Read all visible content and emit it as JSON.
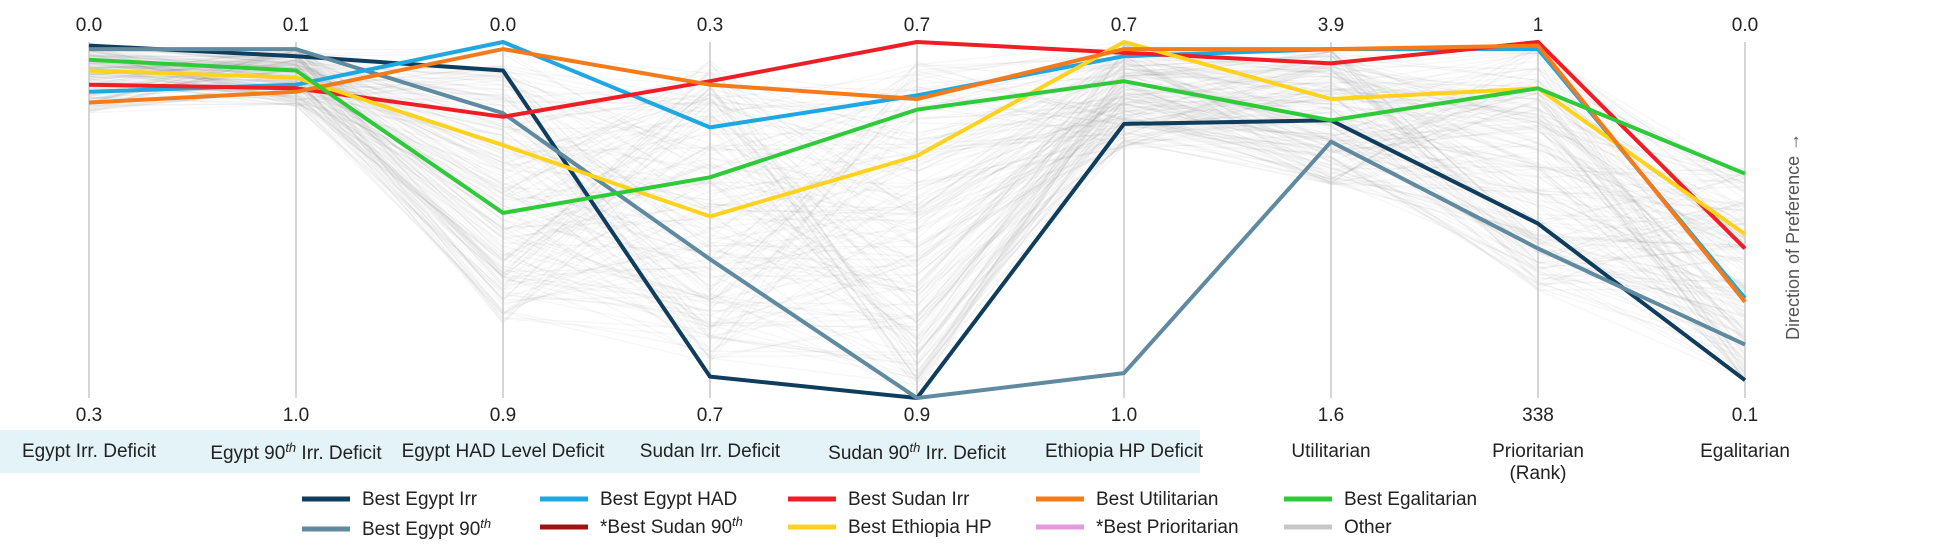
{
  "chart_data": {
    "type": "parallel-coordinates",
    "direction_label": "Direction of Preference →",
    "axes": [
      {
        "id": "egypt_irr",
        "label": "Egypt Irr. Deficit",
        "top": "0.0",
        "bottom": "0.3",
        "group": "deficit"
      },
      {
        "id": "egypt_90",
        "label_pre": "Egypt 90",
        "label_sup": "th",
        "label_post": " Irr. Deficit",
        "top": "0.1",
        "bottom": "1.0",
        "group": "deficit"
      },
      {
        "id": "egypt_had",
        "label": "Egypt HAD Level Deficit",
        "top": "0.0",
        "bottom": "0.9",
        "group": "deficit"
      },
      {
        "id": "sudan_irr",
        "label": "Sudan Irr. Deficit",
        "top": "0.3",
        "bottom": "0.7",
        "group": "deficit"
      },
      {
        "id": "sudan_90",
        "label_pre": "Sudan 90",
        "label_sup": "th",
        "label_post": " Irr. Deficit",
        "top": "0.7",
        "bottom": "0.9",
        "group": "deficit"
      },
      {
        "id": "ethiopia_hp",
        "label": "Ethiopia HP Deficit",
        "top": "0.7",
        "bottom": "1.0",
        "group": "deficit"
      },
      {
        "id": "utilitarian",
        "label": "Utilitarian",
        "top": "3.9",
        "bottom": "1.6",
        "group": "welfare"
      },
      {
        "id": "prioritarian",
        "label": "Prioritarian",
        "label_line2": "(Rank)",
        "top": "1",
        "bottom": "338",
        "group": "welfare"
      },
      {
        "id": "egalitarian",
        "label": "Egalitarian",
        "top": "0.0",
        "bottom": "0.1",
        "group": "welfare"
      }
    ],
    "value_scale": "normalized preference score per axis, 1 = top (preferred end), 0 = bottom",
    "series": [
      {
        "name": "Best Egypt Irr",
        "color": "#0f3d5e",
        "values": [
          0.99,
          0.96,
          0.92,
          0.06,
          0.0,
          0.77,
          0.78,
          0.49,
          0.05
        ]
      },
      {
        "name": "Best Egypt 90th",
        "color": "#5f8aa0",
        "values": [
          0.98,
          0.98,
          0.8,
          0.39,
          0.0,
          0.07,
          0.72,
          0.42,
          0.15
        ]
      },
      {
        "name": "Best Egypt HAD",
        "color": "#1ea7e1",
        "values": [
          0.86,
          0.88,
          1.0,
          0.76,
          0.85,
          0.96,
          0.98,
          0.98,
          0.28
        ]
      },
      {
        "name": "*Best Sudan 90th",
        "color": "#a31010",
        "values": []
      },
      {
        "name": "Best Sudan Irr",
        "color": "#f01d26",
        "values": [
          0.88,
          0.87,
          0.79,
          0.89,
          1.0,
          0.97,
          0.94,
          1.0,
          0.42
        ]
      },
      {
        "name": "Best Ethiopia HP",
        "color": "#ffd21e",
        "values": [
          0.92,
          0.9,
          0.71,
          0.51,
          0.68,
          1.0,
          0.84,
          0.87,
          0.46
        ]
      },
      {
        "name": "Best Utilitarian",
        "color": "#f47a1a",
        "values": [
          0.83,
          0.86,
          0.98,
          0.88,
          0.84,
          0.98,
          0.98,
          0.99,
          0.27
        ]
      },
      {
        "name": "*Best Prioritarian",
        "color": "#e19bdc",
        "values": []
      },
      {
        "name": "Best Egalitarian",
        "color": "#2fca3a",
        "values": [
          0.95,
          0.92,
          0.52,
          0.62,
          0.81,
          0.89,
          0.78,
          0.87,
          0.63
        ]
      },
      {
        "name": "Other",
        "color": "#c8c8c8",
        "values": []
      }
    ]
  }
}
